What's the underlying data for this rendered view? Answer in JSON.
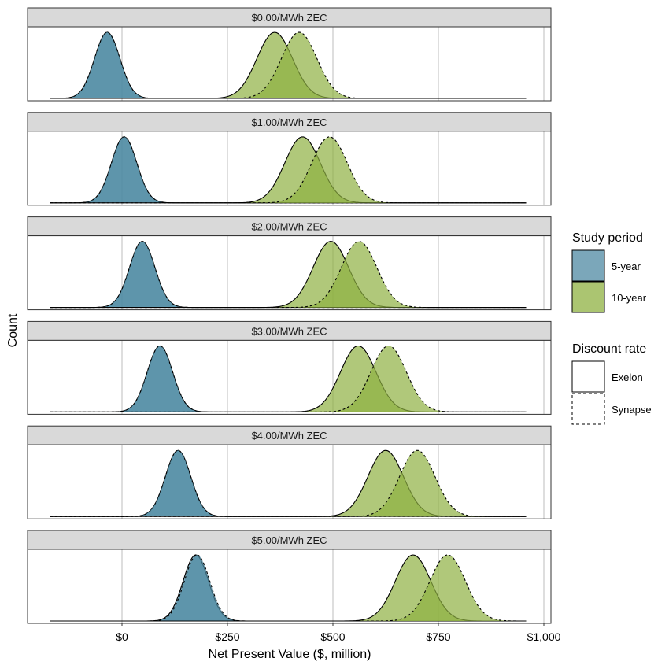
{
  "chart_data": {
    "type": "area",
    "xlabel": "Net Present Value ($, million)",
    "ylabel": "Count",
    "xlim": [
      -170,
      1010
    ],
    "x_ticks": [
      {
        "value": 0,
        "label": "$0"
      },
      {
        "value": 250,
        "label": "$250"
      },
      {
        "value": 500,
        "label": "$500"
      },
      {
        "value": 750,
        "label": "$750"
      },
      {
        "value": 1000,
        "label": "$1,000"
      }
    ],
    "grid": true,
    "legend_position": "right",
    "legend": {
      "study_period": {
        "title": "Study period",
        "items": [
          {
            "label": "5-year",
            "color": "#4f8aa3"
          },
          {
            "label": "10-year",
            "color": "#8fb142"
          }
        ]
      },
      "discount_rate": {
        "title": "Discount rate",
        "items": [
          {
            "label": "Exelon",
            "linetype": "solid"
          },
          {
            "label": "Synapse",
            "linetype": "dashed"
          }
        ]
      }
    },
    "facets": [
      {
        "label": "$0.00/MWh ZEC",
        "series": [
          {
            "study_period": "5-year",
            "discount_rate": "Exelon",
            "mean": -35,
            "sd": 30
          },
          {
            "study_period": "5-year",
            "discount_rate": "Synapse",
            "mean": -35,
            "sd": 30
          },
          {
            "study_period": "10-year",
            "discount_rate": "Exelon",
            "mean": 362,
            "sd": 42
          },
          {
            "study_period": "10-year",
            "discount_rate": "Synapse",
            "mean": 420,
            "sd": 42
          }
        ]
      },
      {
        "label": "$1.00/MWh ZEC",
        "series": [
          {
            "study_period": "5-year",
            "discount_rate": "Exelon",
            "mean": 5,
            "sd": 30
          },
          {
            "study_period": "5-year",
            "discount_rate": "Synapse",
            "mean": 5,
            "sd": 30
          },
          {
            "study_period": "10-year",
            "discount_rate": "Exelon",
            "mean": 428,
            "sd": 42
          },
          {
            "study_period": "10-year",
            "discount_rate": "Synapse",
            "mean": 492,
            "sd": 42
          }
        ]
      },
      {
        "label": "$2.00/MWh ZEC",
        "series": [
          {
            "study_period": "5-year",
            "discount_rate": "Exelon",
            "mean": 48,
            "sd": 30
          },
          {
            "study_period": "5-year",
            "discount_rate": "Synapse",
            "mean": 48,
            "sd": 30
          },
          {
            "study_period": "10-year",
            "discount_rate": "Exelon",
            "mean": 495,
            "sd": 42
          },
          {
            "study_period": "10-year",
            "discount_rate": "Synapse",
            "mean": 562,
            "sd": 42
          }
        ]
      },
      {
        "label": "$3.00/MWh ZEC",
        "series": [
          {
            "study_period": "5-year",
            "discount_rate": "Exelon",
            "mean": 90,
            "sd": 30
          },
          {
            "study_period": "5-year",
            "discount_rate": "Synapse",
            "mean": 90,
            "sd": 30
          },
          {
            "study_period": "10-year",
            "discount_rate": "Exelon",
            "mean": 560,
            "sd": 42
          },
          {
            "study_period": "10-year",
            "discount_rate": "Synapse",
            "mean": 632,
            "sd": 42
          }
        ]
      },
      {
        "label": "$4.00/MWh ZEC",
        "series": [
          {
            "study_period": "5-year",
            "discount_rate": "Exelon",
            "mean": 133,
            "sd": 30
          },
          {
            "study_period": "5-year",
            "discount_rate": "Synapse",
            "mean": 133,
            "sd": 30
          },
          {
            "study_period": "10-year",
            "discount_rate": "Exelon",
            "mean": 625,
            "sd": 42
          },
          {
            "study_period": "10-year",
            "discount_rate": "Synapse",
            "mean": 700,
            "sd": 42
          }
        ]
      },
      {
        "label": "$5.00/MWh ZEC",
        "series": [
          {
            "study_period": "5-year",
            "discount_rate": "Exelon",
            "mean": 175,
            "sd": 30
          },
          {
            "study_period": "5-year",
            "discount_rate": "Synapse",
            "mean": 178,
            "sd": 30
          },
          {
            "study_period": "10-year",
            "discount_rate": "Exelon",
            "mean": 690,
            "sd": 42
          },
          {
            "study_period": "10-year",
            "discount_rate": "Synapse",
            "mean": 772,
            "sd": 42
          }
        ]
      }
    ]
  }
}
